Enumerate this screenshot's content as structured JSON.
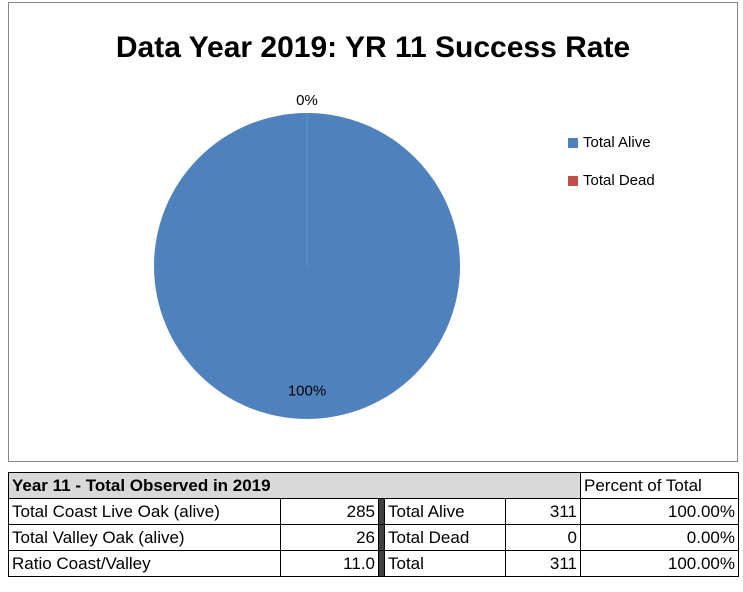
{
  "chart_data": {
    "type": "pie",
    "title": "Data Year 2019: YR 11 Success Rate",
    "categories": [
      "Total Alive",
      "Total Dead"
    ],
    "values": [
      100,
      0
    ],
    "value_labels": [
      "100%",
      "0%"
    ],
    "colors": [
      "#4f81bd",
      "#c0504d"
    ],
    "legend": "right"
  },
  "table": {
    "header": [
      "Year 11 - Total Observed in 2019",
      "Percent of Total"
    ],
    "rows": [
      [
        "Total Coast Live Oak (alive)",
        "285",
        "Total Alive",
        "311",
        "100.00%"
      ],
      [
        "Total Valley Oak (alive)",
        "26",
        "Total Dead",
        "0",
        "0.00%"
      ],
      [
        "Ratio Coast/Valley",
        "11.0",
        "Total",
        "311",
        "100.00%"
      ]
    ]
  }
}
